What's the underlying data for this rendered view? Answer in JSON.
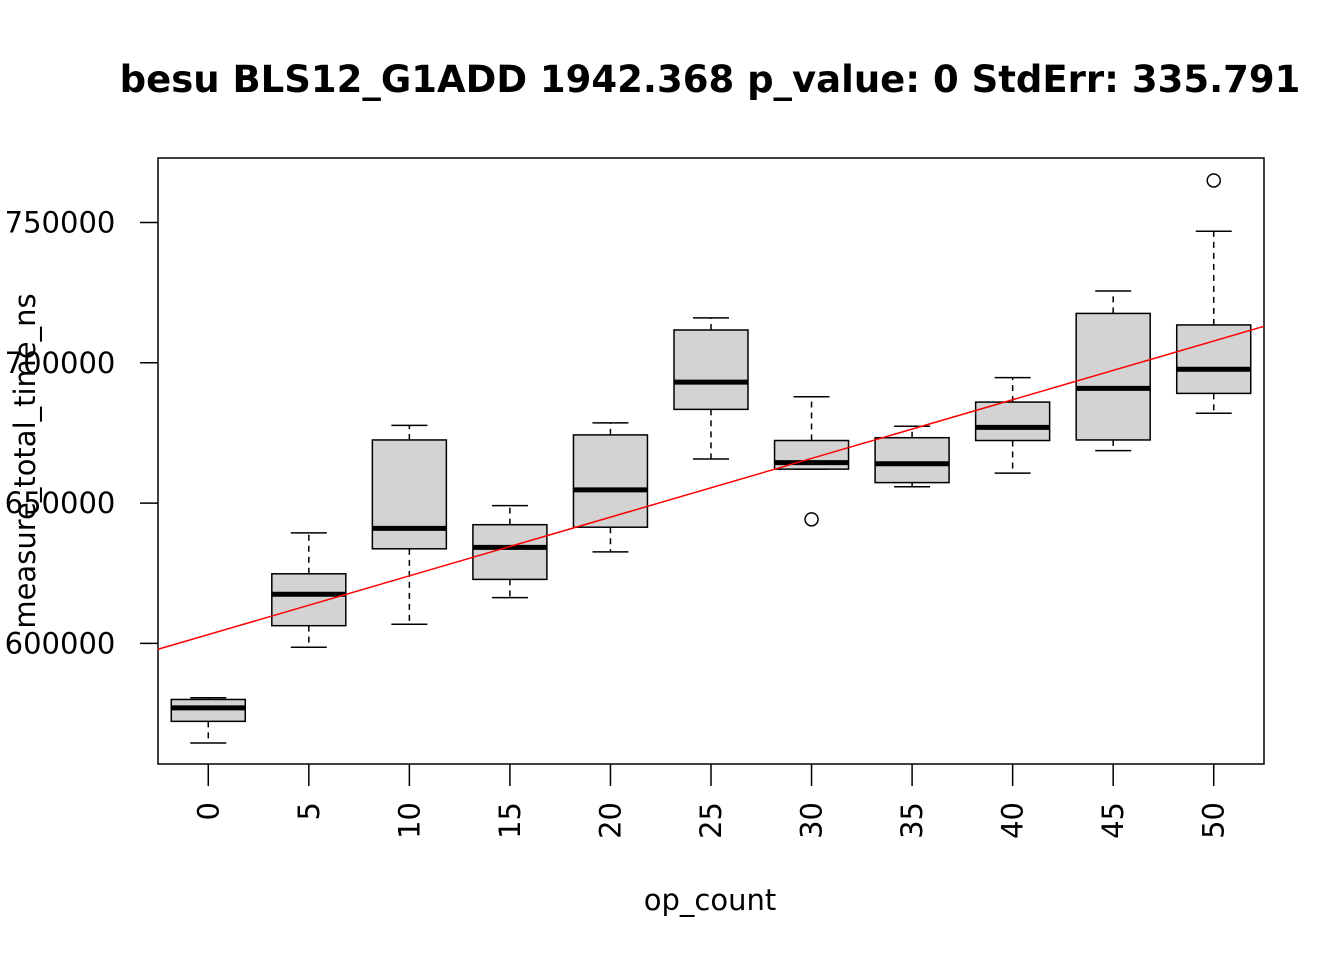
{
  "chart_data": {
    "type": "boxplot",
    "title": "besu BLS12_G1ADD 1942.368 p_value: 0 StdErr: 335.791",
    "xlabel": "op_count",
    "ylabel": "measure_total_time_ns",
    "categories": [
      "0",
      "5",
      "10",
      "15",
      "20",
      "25",
      "30",
      "35",
      "40",
      "45",
      "50"
    ],
    "y_ticks": [
      "600000",
      "650000",
      "700000",
      "750000"
    ],
    "ylim": [
      557000,
      773000
    ],
    "box_fill": "#d3d3d3",
    "regression_color": "#ff0000",
    "regression": {
      "x0": -2.5,
      "y0": 597900,
      "x1": 52.5,
      "y1": 713000
    },
    "boxes": [
      {
        "category": "0",
        "whisker_low": 564500,
        "q1": 572200,
        "median": 577000,
        "q3": 580000,
        "whisker_high": 580600,
        "outliers": []
      },
      {
        "category": "5",
        "whisker_low": 598600,
        "q1": 606300,
        "median": 617500,
        "q3": 624800,
        "whisker_high": 639400,
        "outliers": []
      },
      {
        "category": "10",
        "whisker_low": 606800,
        "q1": 633700,
        "median": 641000,
        "q3": 672500,
        "whisker_high": 677700,
        "outliers": []
      },
      {
        "category": "15",
        "whisker_low": 616300,
        "q1": 622800,
        "median": 634200,
        "q3": 642300,
        "whisker_high": 649100,
        "outliers": []
      },
      {
        "category": "20",
        "whisker_low": 632600,
        "q1": 641400,
        "median": 654700,
        "q3": 674300,
        "whisker_high": 678600,
        "outliers": []
      },
      {
        "category": "25",
        "whisker_low": 665700,
        "q1": 683400,
        "median": 693100,
        "q3": 711700,
        "whisker_high": 716000,
        "outliers": []
      },
      {
        "category": "30",
        "whisker_low": 662100,
        "q1": 662100,
        "median": 664400,
        "q3": 672300,
        "whisker_high": 687900,
        "outliers": [
          644200
        ]
      },
      {
        "category": "35",
        "whisker_low": 655800,
        "q1": 657300,
        "median": 664000,
        "q3": 673300,
        "whisker_high": 677400,
        "outliers": []
      },
      {
        "category": "40",
        "whisker_low": 660700,
        "q1": 672300,
        "median": 677000,
        "q3": 686000,
        "whisker_high": 694700,
        "outliers": []
      },
      {
        "category": "45",
        "whisker_low": 668700,
        "q1": 672500,
        "median": 690900,
        "q3": 717600,
        "whisker_high": 725600,
        "outliers": []
      },
      {
        "category": "50",
        "whisker_low": 682000,
        "q1": 689100,
        "median": 697700,
        "q3": 713500,
        "whisker_high": 746900,
        "outliers": [
          765000
        ]
      }
    ]
  }
}
